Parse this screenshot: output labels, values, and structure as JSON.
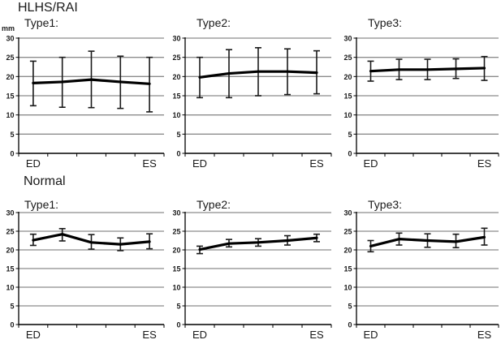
{
  "figure": {
    "background": "#ffffff",
    "y_unit_label": "mm",
    "sections": [
      {
        "title": "HLHS/RAI"
      },
      {
        "title": "Normal"
      }
    ],
    "colors": {
      "series": "#000000",
      "error_bar": "#1a1a1a",
      "grid": "#8c8c8c",
      "axis": "#000000",
      "text": "#1a1a1a"
    }
  },
  "chart_data": [
    {
      "type": "line",
      "section": "HLHS/RAI",
      "title": "Type1:",
      "x_categories": [
        "ED",
        "",
        "",
        "",
        "ES"
      ],
      "ylim": [
        0,
        30
      ],
      "yticks": [
        0,
        5,
        10,
        15,
        20,
        25,
        30
      ],
      "grid": true,
      "legend": false,
      "series": [
        {
          "means": [
            18.3,
            18.6,
            19.2,
            18.6,
            18.1
          ],
          "upper": [
            24.0,
            25.0,
            26.6,
            25.3,
            25.0
          ],
          "lower": [
            12.4,
            12.0,
            11.9,
            11.7,
            10.8
          ]
        }
      ]
    },
    {
      "type": "line",
      "section": "HLHS/RAI",
      "title": "Type2:",
      "x_categories": [
        "ED",
        "",
        "",
        "",
        "ES"
      ],
      "ylim": [
        0,
        30
      ],
      "yticks": [
        0,
        5,
        10,
        15,
        20,
        25,
        30
      ],
      "grid": true,
      "legend": false,
      "series": [
        {
          "means": [
            19.8,
            20.8,
            21.3,
            21.3,
            21.0
          ],
          "upper": [
            25.0,
            27.0,
            27.5,
            27.2,
            26.7
          ],
          "lower": [
            14.5,
            14.5,
            15.0,
            15.3,
            15.5
          ]
        }
      ]
    },
    {
      "type": "line",
      "section": "HLHS/RAI",
      "title": "Type3:",
      "x_categories": [
        "ED",
        "",
        "",
        "",
        "ES"
      ],
      "ylim": [
        0,
        30
      ],
      "yticks": [
        0,
        5,
        10,
        15,
        20,
        25,
        30
      ],
      "grid": true,
      "legend": false,
      "series": [
        {
          "means": [
            21.4,
            21.8,
            21.8,
            22.0,
            22.2
          ],
          "upper": [
            24.0,
            24.5,
            24.5,
            24.6,
            25.2
          ],
          "lower": [
            18.8,
            19.2,
            19.2,
            19.5,
            19.0
          ]
        }
      ]
    },
    {
      "type": "line",
      "section": "Normal",
      "title": "Type1:",
      "x_categories": [
        "ED",
        "",
        "",
        "",
        "ES"
      ],
      "ylim": [
        0,
        30
      ],
      "yticks": [
        0,
        5,
        10,
        15,
        20,
        25,
        30
      ],
      "grid": true,
      "legend": false,
      "series": [
        {
          "means": [
            22.6,
            24.2,
            22.0,
            21.5,
            22.2
          ],
          "upper": [
            24.2,
            25.7,
            24.1,
            23.2,
            24.3
          ],
          "lower": [
            21.2,
            22.4,
            20.2,
            19.8,
            20.3
          ]
        }
      ]
    },
    {
      "type": "line",
      "section": "Normal",
      "title": "Type2:",
      "x_categories": [
        "ED",
        "",
        "",
        "",
        "ES"
      ],
      "ylim": [
        0,
        30
      ],
      "yticks": [
        0,
        5,
        10,
        15,
        20,
        25,
        30
      ],
      "grid": true,
      "legend": false,
      "series": [
        {
          "means": [
            20.1,
            21.7,
            22.0,
            22.5,
            23.2
          ],
          "upper": [
            21.0,
            22.8,
            23.0,
            23.8,
            24.2
          ],
          "lower": [
            19.0,
            20.8,
            21.0,
            21.3,
            22.2
          ]
        }
      ]
    },
    {
      "type": "line",
      "section": "Normal",
      "title": "Type3:",
      "x_categories": [
        "ED",
        "",
        "",
        "",
        "ES"
      ],
      "ylim": [
        0,
        30
      ],
      "yticks": [
        0,
        5,
        10,
        15,
        20,
        25,
        30
      ],
      "grid": true,
      "legend": false,
      "series": [
        {
          "means": [
            21.0,
            22.9,
            22.5,
            22.2,
            23.4
          ],
          "upper": [
            22.5,
            24.5,
            24.3,
            24.2,
            25.8
          ],
          "lower": [
            19.5,
            21.3,
            20.7,
            20.6,
            21.3
          ]
        }
      ]
    }
  ]
}
